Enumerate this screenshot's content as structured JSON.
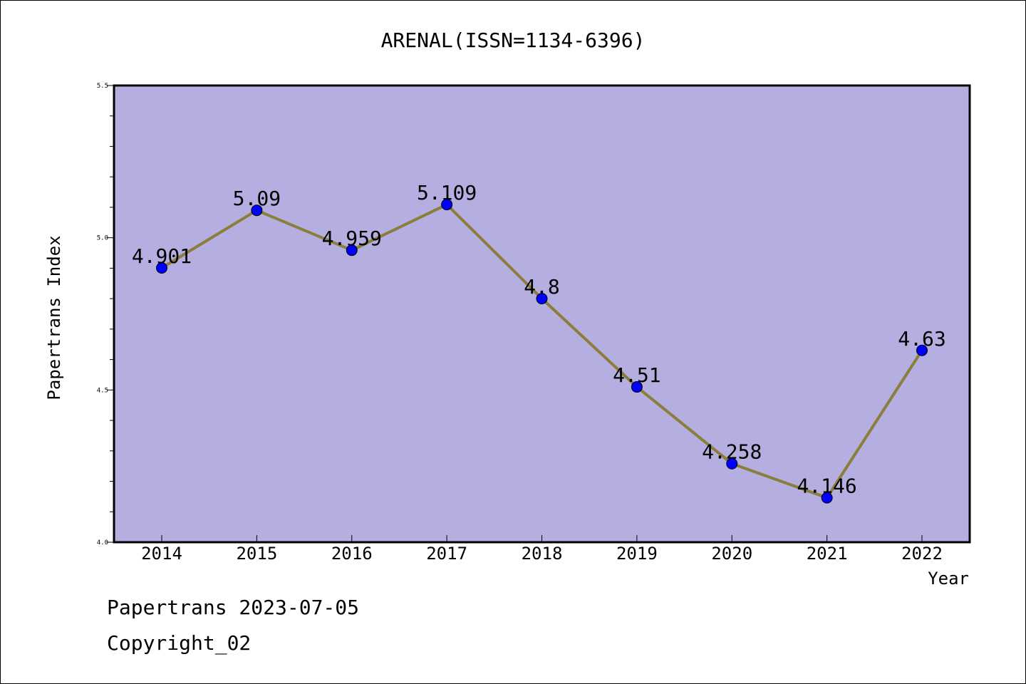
{
  "chart_data": {
    "type": "line",
    "title": "ARENAL(ISSN=1134-6396)",
    "xlabel": "Year",
    "ylabel": "Papertrans Index",
    "categories": [
      "2014",
      "2015",
      "2016",
      "2017",
      "2018",
      "2019",
      "2020",
      "2021",
      "2022"
    ],
    "series": [
      {
        "values": [
          4.901,
          5.09,
          4.959,
          5.109,
          4.8,
          4.51,
          4.258,
          4.146,
          4.63
        ],
        "data_labels": [
          "4.901",
          "5.09",
          "4.959",
          "5.109",
          "4.8",
          "4.51",
          "4.258",
          "4.146",
          "4.63"
        ],
        "line_color": "#8b7d3a",
        "marker_color": "#0000ff"
      }
    ],
    "ylim": [
      4.0,
      5.5
    ],
    "yticks": [
      "4.0",
      "4.5",
      "5.0",
      "5.5"
    ],
    "plot_background": "#b4aee1",
    "grid": false,
    "legend": "none"
  },
  "footer": {
    "line1": "Papertrans 2023-07-05",
    "line2": "Copyright_02"
  }
}
